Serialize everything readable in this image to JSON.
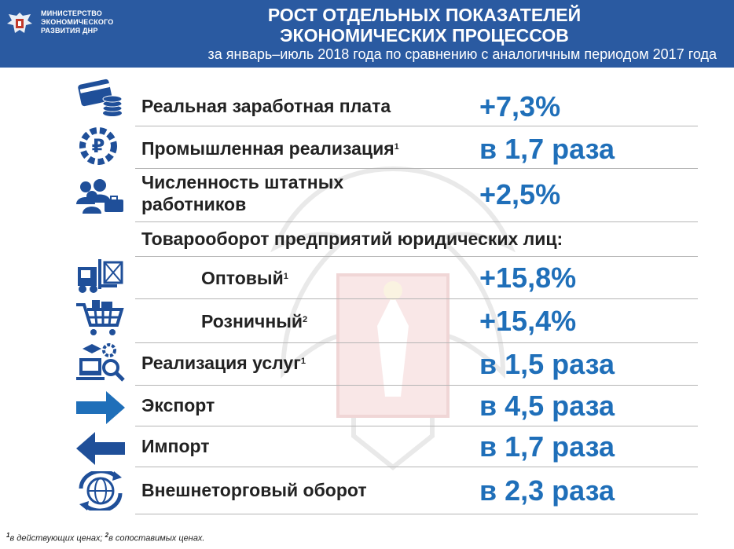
{
  "header": {
    "ministry_line1": "МИНИСТЕРСТВО",
    "ministry_line2": "ЭКОНОМИЧЕСКОГО",
    "ministry_line3": "РАЗВИТИЯ ДНР",
    "title_line1": "РОСТ ОТДЕЛЬНЫХ ПОКАЗАТЕЛЕЙ",
    "title_line2": "ЭКОНОМИЧЕСКИХ ПРОЦЕССОВ",
    "subtitle": "за январь–июль 2018 года по сравнению с аналогичным периодом 2017 года"
  },
  "colors": {
    "header_bg": "#2a5aa1",
    "value": "#1f6fb9",
    "icon": "#1f4f99"
  },
  "rows": {
    "wages": {
      "label": "Реальная заработная плата",
      "value": "+7,3%",
      "icon": "card-coins-icon"
    },
    "industry": {
      "label": "Промышленная реализация",
      "footnote": "1",
      "value": "в 1,7 раза",
      "icon": "gear-ruble-icon"
    },
    "staff": {
      "label_line1": "Численность штатных",
      "label_line2": "работников",
      "value": "+2,5%",
      "icon": "people-briefcase-icon"
    },
    "turnover_heading": {
      "label": "Товарооборот предприятий юридических лиц:"
    },
    "wholesale": {
      "label": "Оптовый",
      "footnote": "1",
      "value": "+15,8%",
      "icon": "forklift-icon"
    },
    "retail": {
      "label": "Розничный",
      "footnote": "2",
      "value": "+15,4%",
      "icon": "cart-icon"
    },
    "services": {
      "label": "Реализация услуг",
      "footnote": "1",
      "value": "в 1,5 раза",
      "icon": "services-icon"
    },
    "export": {
      "label": "Экспорт",
      "value": "в 4,5 раза",
      "icon": "arrow-right-icon"
    },
    "import": {
      "label": "Импорт",
      "value": "в 1,7 раза",
      "icon": "arrow-left-icon"
    },
    "foreign_trade": {
      "label": "Внешнеторговый оборот",
      "value": "в 2,3 раза",
      "icon": "globe-arrows-icon"
    }
  },
  "footnote": {
    "mark1": "1",
    "text1": "в действующих ценах; ",
    "mark2": "2",
    "text2": "в сопоставимых ценах."
  }
}
